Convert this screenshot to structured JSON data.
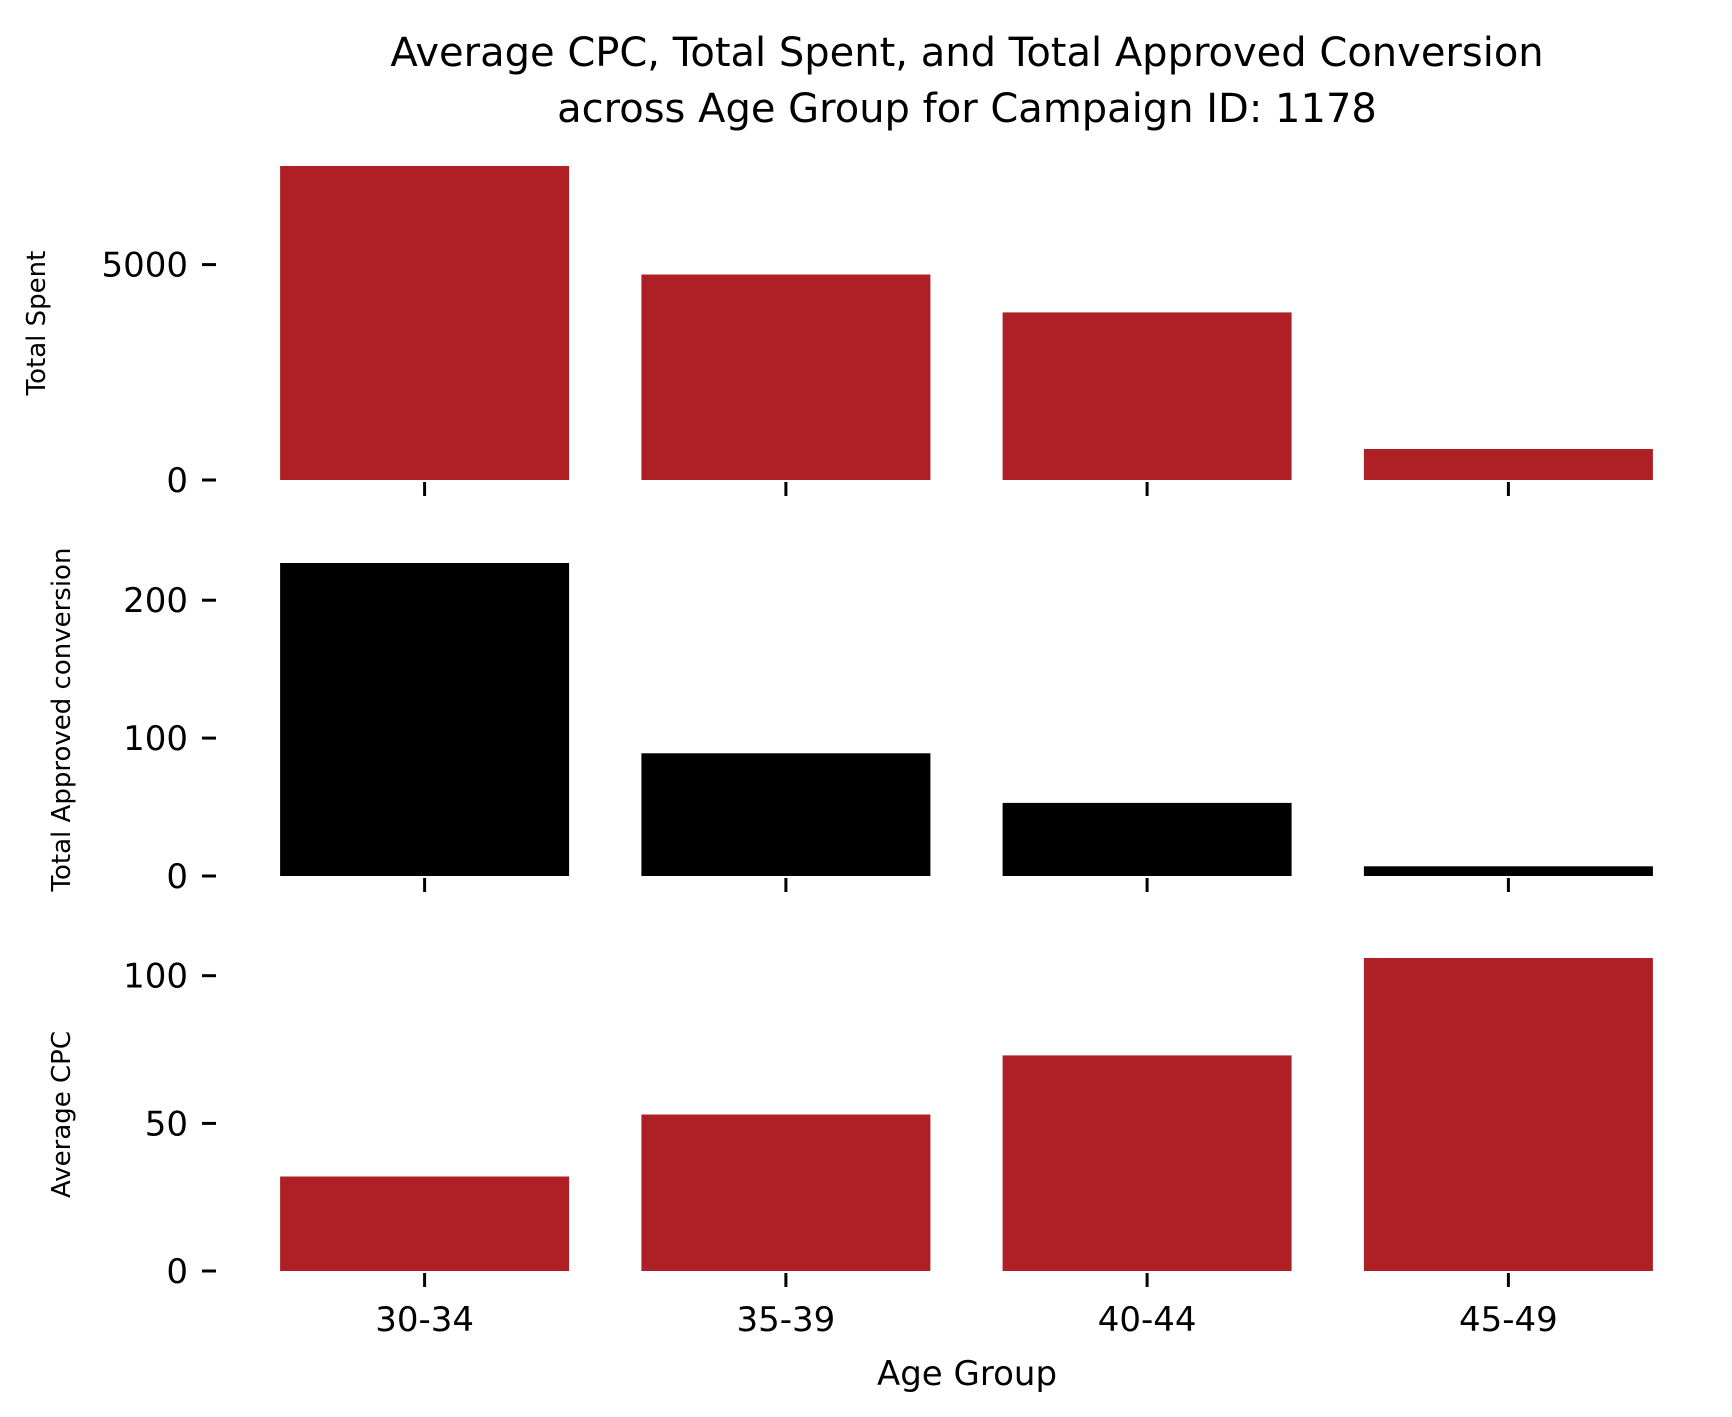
{
  "chart_data": {
    "type": "bar",
    "title": "Average CPC, Total Spent, and Total Approved Conversion\nacross Age Group for Campaign ID: 1178",
    "categories": [
      "30-34",
      "35-39",
      "40-44",
      "45-49"
    ],
    "xlabel": "Age Group",
    "subplots": [
      {
        "ylabel": "Total Spent",
        "color": "#ae2025",
        "values": [
          7290,
          4770,
          3890,
          720
        ],
        "ylim": [
          0,
          7290
        ],
        "yticks": [
          0,
          5000
        ]
      },
      {
        "ylabel": "Total Approved conversion",
        "color": "#000000",
        "values": [
          227,
          89,
          53,
          7
        ],
        "ylim": [
          0,
          227
        ],
        "yticks": [
          0,
          100,
          200
        ]
      },
      {
        "ylabel": "Average CPC",
        "color": "#ae2025",
        "values": [
          32,
          53,
          73,
          106
        ],
        "ylim": [
          0,
          106
        ],
        "yticks": [
          0,
          50,
          100
        ]
      }
    ]
  }
}
